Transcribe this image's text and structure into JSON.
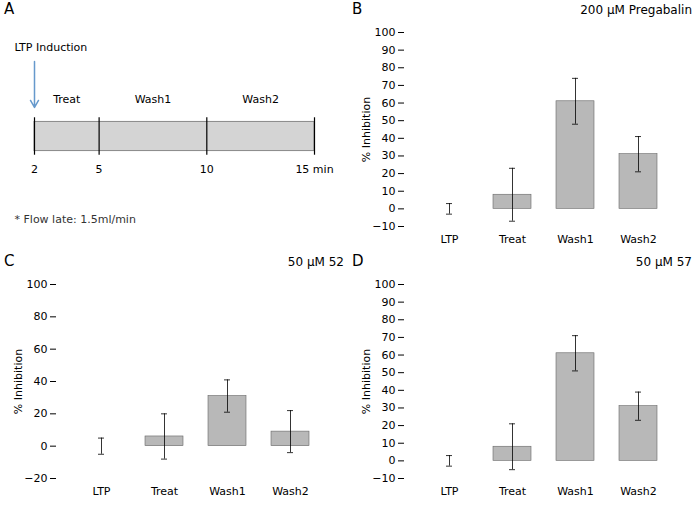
{
  "chart_data": [
    {
      "type": "timeline",
      "annotations": [
        {
          "text": "A"
        },
        {
          "text": "LTP Induction",
          "x": 2
        },
        {
          "text": "* Flow late: 1.5ml/min"
        }
      ],
      "color": "#6699cc",
      "xlim": [
        2,
        15
      ],
      "xticks": [
        2,
        5,
        10,
        {
          "value": 15,
          "label": "15 min"
        }
      ],
      "categories": [
        "Treat",
        "Wash1",
        "Wash2"
      ]
    },
    {
      "type": "bar",
      "annotations": [
        {
          "text": "B"
        }
      ],
      "title": "200 μM Pregabalin",
      "categories": [
        "LTP",
        "Treat",
        "Wash1",
        "Wash2"
      ],
      "values": [
        0,
        8,
        61,
        31
      ],
      "errors": [
        3,
        15,
        13,
        10
      ],
      "ylim": [
        -10,
        100
      ],
      "yticks": [
        -10,
        0,
        10,
        20,
        30,
        40,
        50,
        60,
        70,
        80,
        90,
        100
      ],
      "ylabel": "% Inhibition",
      "color": "#b8b8b8"
    },
    {
      "type": "bar",
      "annotations": [
        {
          "text": "C"
        }
      ],
      "title": "50 μM 52",
      "categories": [
        "LTP",
        "Treat",
        "Wash1",
        "Wash2"
      ],
      "values": [
        0,
        6,
        31,
        9
      ],
      "errors": [
        5,
        14,
        10,
        13
      ],
      "ylim": [
        -20,
        100
      ],
      "yticks": [
        -20,
        0,
        20,
        40,
        60,
        80,
        100
      ],
      "ylabel": "% Inhibition",
      "color": "#b8b8b8"
    },
    {
      "type": "bar",
      "annotations": [
        {
          "text": "D"
        }
      ],
      "title": "50 μM 57",
      "categories": [
        "LTP",
        "Treat",
        "Wash1",
        "Wash2"
      ],
      "values": [
        0,
        8,
        61,
        31
      ],
      "errors": [
        3,
        13,
        10,
        8
      ],
      "ylim": [
        -10,
        100
      ],
      "yticks": [
        -10,
        0,
        10,
        20,
        30,
        40,
        50,
        60,
        70,
        80,
        90,
        100
      ],
      "ylabel": "% Inhibition",
      "color": "#b8b8b8"
    }
  ]
}
